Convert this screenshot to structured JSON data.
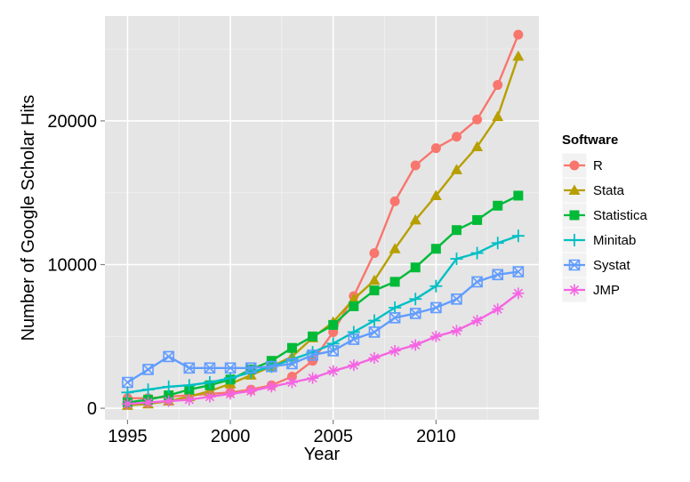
{
  "chart_data": {
    "type": "line",
    "xlabel": "Year",
    "ylabel": "Number of Google Scholar Hits",
    "x": [
      1995,
      1996,
      1997,
      1998,
      1999,
      2000,
      2001,
      2002,
      2003,
      2004,
      2005,
      2006,
      2007,
      2008,
      2009,
      2010,
      2011,
      2012,
      2013,
      2014
    ],
    "xlim": [
      1993.9,
      2015.0
    ],
    "ylim": [
      -800,
      27300
    ],
    "x_ticks": [
      1995,
      2000,
      2005,
      2010
    ],
    "x_tick_labels": [
      "1995",
      "2000",
      "2005",
      "2010"
    ],
    "x_minor_ticks": [
      1997.5,
      2002.5,
      2007.5,
      2012.5
    ],
    "y_ticks": [
      0,
      10000,
      20000
    ],
    "y_tick_labels": [
      "0",
      "10000",
      "20000"
    ],
    "y_minor_ticks": [
      5000,
      15000,
      25000
    ],
    "grid": true,
    "background": "#e5e5e5",
    "legend": {
      "title": "Software",
      "placement": "right"
    },
    "series": [
      {
        "name": "R",
        "color": "#f8766d",
        "marker": "circle",
        "values": [
          700,
          700,
          800,
          900,
          1000,
          1100,
          1300,
          1600,
          2200,
          3300,
          5300,
          7800,
          10800,
          14400,
          16900,
          18100,
          18900,
          20100,
          22500,
          26000
        ]
      },
      {
        "name": "Stata",
        "color": "#b79f00",
        "marker": "triangle",
        "values": [
          200,
          300,
          500,
          800,
          1200,
          1700,
          2300,
          2900,
          3600,
          4900,
          6000,
          7600,
          8900,
          11100,
          13100,
          14800,
          16600,
          18200,
          20300,
          24500
        ]
      },
      {
        "name": "Statistica",
        "color": "#00ba38",
        "marker": "square",
        "values": [
          400,
          600,
          900,
          1300,
          1600,
          2000,
          2700,
          3300,
          4200,
          5000,
          5800,
          7100,
          8200,
          8800,
          9800,
          11100,
          12400,
          13100,
          14100,
          14800
        ]
      },
      {
        "name": "Minitab",
        "color": "#00bfc4",
        "marker": "plus",
        "values": [
          1100,
          1300,
          1500,
          1600,
          1800,
          2100,
          2500,
          2900,
          3400,
          3900,
          4500,
          5300,
          6100,
          7000,
          7600,
          8500,
          10400,
          10800,
          11500,
          12000
        ]
      },
      {
        "name": "Systat",
        "color": "#619cff",
        "marker": "boxx",
        "values": [
          1800,
          2700,
          3600,
          2800,
          2800,
          2800,
          2800,
          2900,
          3100,
          3700,
          4000,
          4800,
          5300,
          6300,
          6600,
          7000,
          7600,
          8800,
          9300,
          9500
        ]
      },
      {
        "name": "JMP",
        "color": "#f564e3",
        "marker": "star",
        "values": [
          300,
          400,
          500,
          600,
          800,
          1000,
          1200,
          1500,
          1800,
          2100,
          2600,
          3000,
          3500,
          4000,
          4400,
          5000,
          5400,
          6100,
          6900,
          8000
        ]
      }
    ]
  }
}
